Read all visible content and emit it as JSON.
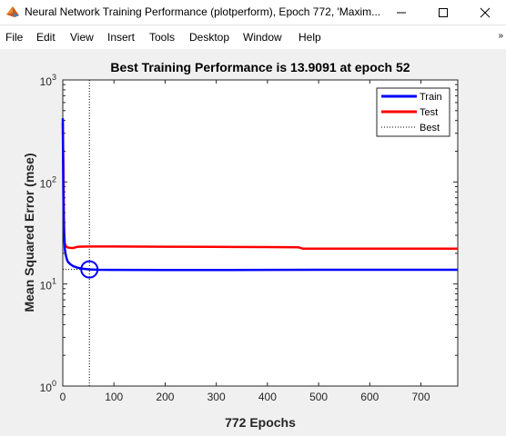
{
  "window": {
    "title": "Neural Network Training Performance (plotperform), Epoch 772, 'Maxim..."
  },
  "menu": {
    "items": [
      "File",
      "Edit",
      "View",
      "Insert",
      "Tools",
      "Desktop",
      "Window",
      "Help"
    ],
    "overflow_icon": "double-chevron-right-icon"
  },
  "chart_data": {
    "type": "line",
    "title": "Best Training Performance is 13.9091 at epoch 52",
    "xlabel": "772 Epochs",
    "ylabel": "Mean Squared Error  (mse)",
    "xlim": [
      0,
      772
    ],
    "ylim": [
      1,
      1000
    ],
    "yscale": "log",
    "xticks": [
      0,
      100,
      200,
      300,
      400,
      500,
      600,
      700
    ],
    "yticks": [
      1,
      10,
      100,
      1000
    ],
    "ytick_labels": [
      {
        "base": "10",
        "exp": "0"
      },
      {
        "base": "10",
        "exp": "1"
      },
      {
        "base": "10",
        "exp": "2"
      },
      {
        "base": "10",
        "exp": "3"
      }
    ],
    "legend_position": "top-right",
    "series": [
      {
        "name": "Train",
        "color": "#0000ff",
        "x": [
          0,
          1,
          2,
          4,
          6,
          8,
          10,
          15,
          20,
          30,
          40,
          52,
          70,
          100,
          200,
          300,
          400,
          500,
          600,
          700,
          772
        ],
        "y": [
          420,
          80,
          35,
          22,
          19,
          17.5,
          16.5,
          15.6,
          15.0,
          14.4,
          14.1,
          13.91,
          13.8,
          13.75,
          13.7,
          13.7,
          13.75,
          13.8,
          13.8,
          13.8,
          13.8
        ]
      },
      {
        "name": "Test",
        "color": "#ff0000",
        "x": [
          0,
          1,
          2,
          3,
          4,
          6,
          8,
          10,
          15,
          20,
          30,
          50,
          100,
          200,
          300,
          400,
          460,
          470,
          500,
          600,
          700,
          772
        ],
        "y": [
          380,
          150,
          50,
          30,
          25,
          23.5,
          23,
          22.8,
          22.6,
          22.5,
          23.2,
          23.3,
          23.3,
          23.2,
          23.1,
          23.0,
          22.9,
          22.2,
          22.2,
          22.2,
          22.2,
          22.2
        ]
      },
      {
        "name": "Best",
        "color": "#000000",
        "style": "dotted"
      }
    ],
    "best_point": {
      "epoch": 52,
      "value": 13.9091
    }
  }
}
